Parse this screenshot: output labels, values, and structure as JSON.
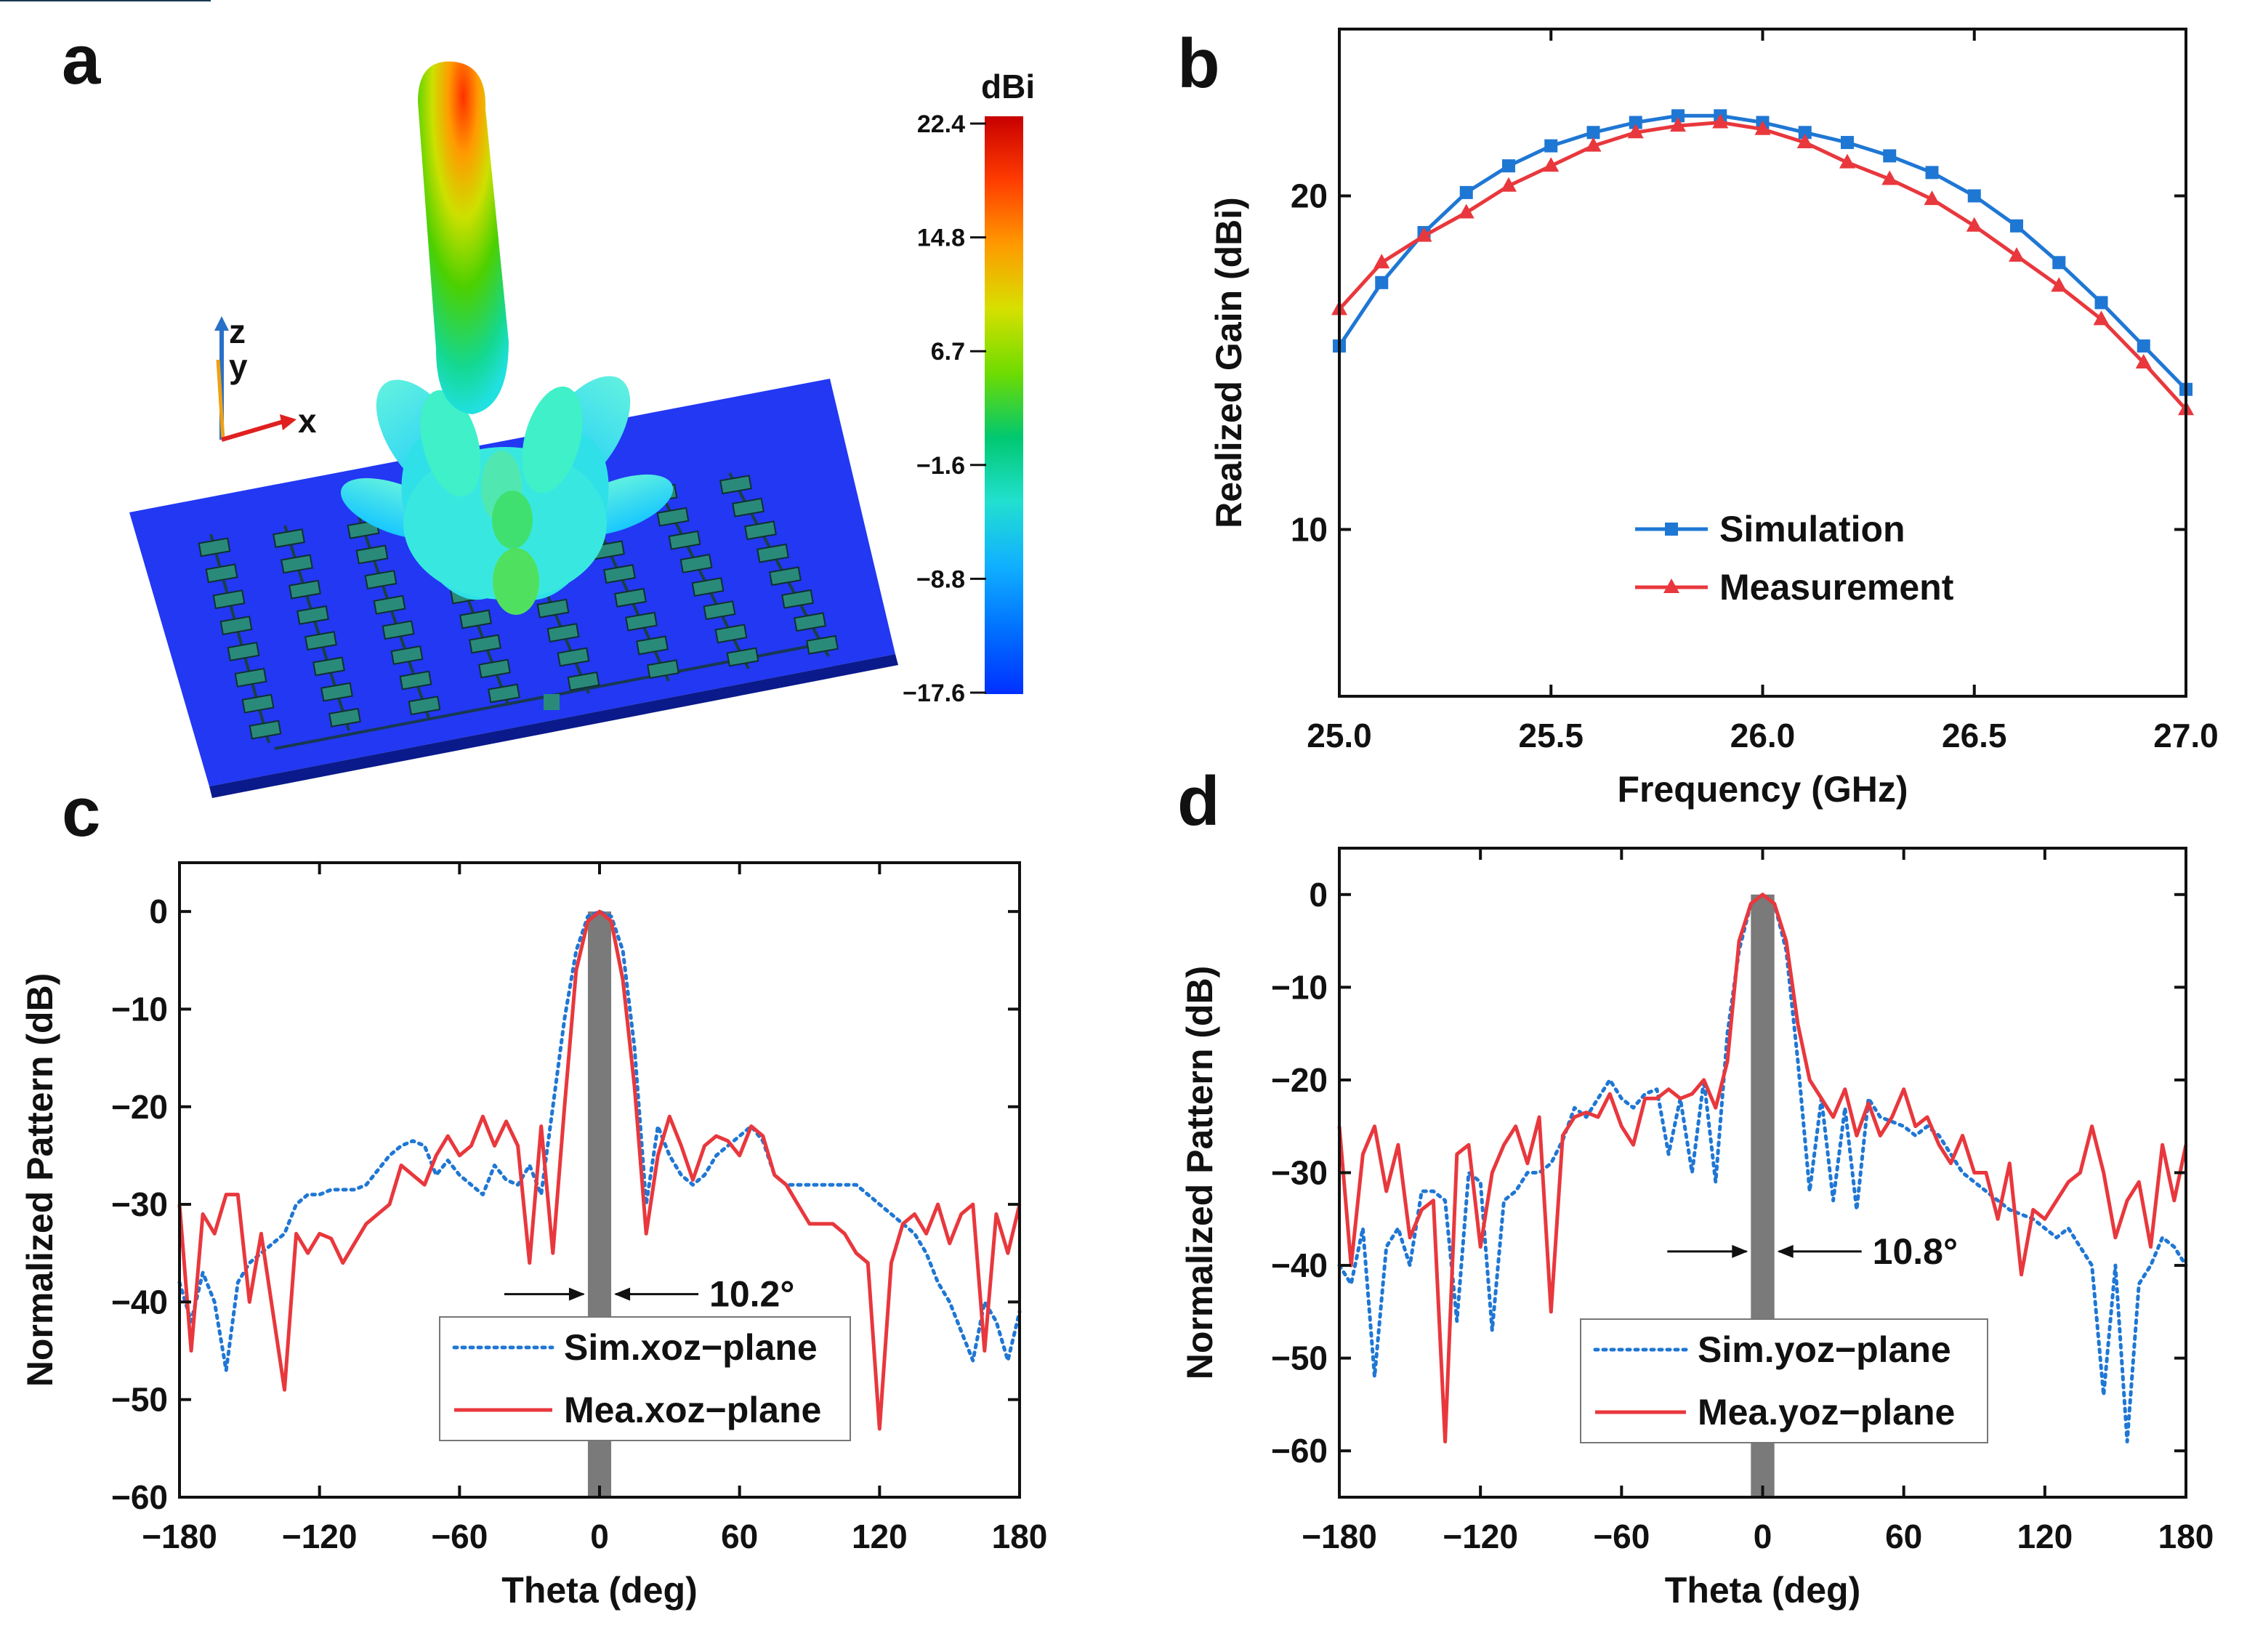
{
  "panels": {
    "a": {
      "label": "a",
      "colorbar": {
        "unit": "dBi",
        "ticks": [
          "22.4",
          "14.8",
          "6.7",
          "-1.6",
          "-8.8",
          "-17.6"
        ],
        "colors": [
          "#c80000",
          "#ff3c00",
          "#ff9a00",
          "#d7e000",
          "#6fdc00",
          "#00c870",
          "#22e0d0",
          "#10b0ff",
          "#0070ff",
          "#0030ff"
        ]
      },
      "axes": {
        "z": "z",
        "y": "y",
        "x": "x"
      }
    },
    "b": {
      "label": "b"
    },
    "c": {
      "label": "c",
      "beamwidth": "10.2°"
    },
    "d": {
      "label": "d",
      "beamwidth": "10.8°"
    }
  },
  "chart_data": [
    {
      "type": "line",
      "panel": "b",
      "title": "",
      "xlabel": "Frequency (GHz)",
      "ylabel": "Realized Gain (dBi)",
      "xlim": [
        25.0,
        27.0
      ],
      "ylim": [
        5,
        25
      ],
      "xticks": [
        "25.0",
        "25.5",
        "26.0",
        "26.5",
        "27.0"
      ],
      "yticks": [
        "10",
        "20"
      ],
      "x": [
        25.0,
        25.1,
        25.2,
        25.3,
        25.4,
        25.5,
        25.6,
        25.7,
        25.8,
        25.9,
        26.0,
        26.1,
        26.2,
        26.3,
        26.4,
        26.5,
        26.6,
        26.7,
        26.8,
        26.9,
        27.0
      ],
      "series": [
        {
          "name": "Simulation",
          "color": "#1f77d4",
          "marker": "square",
          "values": [
            15.5,
            17.4,
            18.9,
            20.1,
            20.9,
            21.5,
            21.9,
            22.2,
            22.4,
            22.4,
            22.2,
            21.9,
            21.6,
            21.2,
            20.7,
            20.0,
            19.1,
            18.0,
            16.8,
            15.5,
            14.2
          ]
        },
        {
          "name": "Measurement",
          "color": "#e8383d",
          "marker": "triangle",
          "values": [
            16.6,
            18.0,
            18.8,
            19.5,
            20.3,
            20.9,
            21.5,
            21.9,
            22.1,
            22.2,
            22.0,
            21.6,
            21.0,
            20.5,
            19.9,
            19.1,
            18.2,
            17.3,
            16.3,
            15.0,
            13.6
          ]
        }
      ]
    },
    {
      "type": "line",
      "panel": "c",
      "xlabel": "Theta (deg)",
      "ylabel": "Normalized Pattern (dB)",
      "xlim": [
        -180,
        180
      ],
      "ylim": [
        -60,
        5
      ],
      "xticks": [
        "-180",
        "-120",
        "-60",
        "0",
        "60",
        "120",
        "180"
      ],
      "yticks": [
        "0",
        "-10",
        "-20",
        "-30",
        "-40",
        "-50",
        "-60"
      ],
      "x": [
        -180,
        -175,
        -170,
        -165,
        -160,
        -155,
        -150,
        -145,
        -140,
        -135,
        -130,
        -125,
        -120,
        -115,
        -110,
        -105,
        -100,
        -95,
        -90,
        -85,
        -80,
        -75,
        -70,
        -65,
        -60,
        -55,
        -50,
        -45,
        -40,
        -35,
        -30,
        -25,
        -20,
        -15,
        -10,
        -5,
        0,
        5,
        10,
        15,
        20,
        25,
        30,
        35,
        40,
        45,
        50,
        55,
        60,
        65,
        70,
        75,
        80,
        85,
        90,
        95,
        100,
        105,
        110,
        115,
        120,
        125,
        130,
        135,
        140,
        145,
        150,
        155,
        160,
        165,
        170,
        175,
        180
      ],
      "series": [
        {
          "name": "Sim.xoz−plane",
          "color": "#1f77d4",
          "style": "dotted",
          "values": [
            -38,
            -42,
            -37,
            -40,
            -47,
            -38,
            -36,
            -35,
            -34,
            -33,
            -30,
            -29,
            -29,
            -28.5,
            -28.5,
            -28.5,
            -28,
            -26.5,
            -25,
            -24,
            -23.5,
            -24,
            -27,
            -25.5,
            -27,
            -28,
            -29,
            -26,
            -27.5,
            -28,
            -26,
            -29,
            -20,
            -11,
            -4,
            -0.5,
            0,
            -0.5,
            -4,
            -14,
            -30,
            -22,
            -25,
            -27,
            -28,
            -27,
            -25,
            -24,
            -23,
            -22,
            -23.5,
            -27,
            -28,
            -28,
            -28,
            -28,
            -28,
            -28,
            -28,
            -29,
            -30,
            -31,
            -32,
            -33,
            -35,
            -38,
            -40,
            -43,
            -46,
            -40,
            -42,
            -46,
            -41
          ]
        },
        {
          "name": "Mea.xoz−plane",
          "color": "#e8383d",
          "style": "solid",
          "values": [
            -30,
            -45,
            -31,
            -33,
            -29,
            -29,
            -40,
            -33,
            -41,
            -49,
            -33,
            -35,
            -33,
            -33.5,
            -36,
            -34,
            -32,
            -31,
            -30,
            -26,
            -27,
            -28,
            -25,
            -23,
            -25,
            -24,
            -21,
            -24,
            -21.5,
            -24,
            -36,
            -22,
            -35,
            -20,
            -6,
            -1,
            0,
            -1,
            -7,
            -18,
            -33,
            -25,
            -21,
            -24,
            -27.5,
            -24,
            -23,
            -23.5,
            -25,
            -22,
            -23,
            -27,
            -28,
            -30,
            -32,
            -32,
            -32,
            -33,
            -35,
            -36,
            -53,
            -36,
            -32,
            -31,
            -33,
            -30,
            -34,
            -31,
            -30,
            -45,
            -31,
            -35,
            -30
          ]
        }
      ]
    },
    {
      "type": "line",
      "panel": "d",
      "xlabel": "Theta (deg)",
      "ylabel": "Normalized Pattern (dB)",
      "xlim": [
        -180,
        180
      ],
      "ylim": [
        -65,
        5
      ],
      "xticks": [
        "-180",
        "-120",
        "-60",
        "0",
        "60",
        "120",
        "180"
      ],
      "yticks": [
        "0",
        "-10",
        "-20",
        "-30",
        "-40",
        "-50",
        "-60"
      ],
      "x": [
        -180,
        -175,
        -170,
        -165,
        -160,
        -155,
        -150,
        -145,
        -140,
        -135,
        -130,
        -125,
        -120,
        -115,
        -110,
        -105,
        -100,
        -95,
        -90,
        -85,
        -80,
        -75,
        -70,
        -65,
        -60,
        -55,
        -50,
        -45,
        -40,
        -35,
        -30,
        -25,
        -20,
        -15,
        -10,
        -5,
        0,
        5,
        10,
        15,
        20,
        25,
        30,
        35,
        40,
        45,
        50,
        55,
        60,
        65,
        70,
        75,
        80,
        85,
        90,
        95,
        100,
        105,
        110,
        115,
        120,
        125,
        130,
        135,
        140,
        145,
        150,
        155,
        160,
        165,
        170,
        175,
        180
      ],
      "series": [
        {
          "name": "Sim.yoz−plane",
          "color": "#1f77d4",
          "style": "dotted",
          "values": [
            -40,
            -42,
            -36,
            -52,
            -38,
            -36,
            -40,
            -32,
            -32,
            -33,
            -46,
            -30,
            -31,
            -47,
            -33,
            -32,
            -30,
            -30,
            -29,
            -26.5,
            -23,
            -24,
            -22,
            -20,
            -22,
            -23,
            -21.5,
            -21,
            -28,
            -22,
            -30,
            -20,
            -31,
            -15,
            -6,
            -1,
            0,
            -1,
            -6,
            -18,
            -32,
            -22,
            -33,
            -23,
            -34,
            -22,
            -24,
            -24.5,
            -25,
            -26,
            -25,
            -26,
            -28,
            -30,
            -31,
            -32,
            -33,
            -34,
            -34.5,
            -35,
            -36,
            -37,
            -36,
            -38,
            -40,
            -54,
            -40,
            -59,
            -42,
            -40,
            -37,
            -38,
            -40
          ]
        },
        {
          "name": "Mea.yoz−plane",
          "color": "#e8383d",
          "style": "solid",
          "values": [
            -25,
            -40,
            -28,
            -25,
            -32,
            -27,
            -37,
            -34,
            -33,
            -59,
            -28,
            -27,
            -38,
            -30,
            -27,
            -25,
            -29,
            -24,
            -45,
            -26,
            -24,
            -23.5,
            -24,
            -21.5,
            -25,
            -27,
            -22,
            -22,
            -21,
            -22,
            -21.5,
            -20,
            -23,
            -18,
            -5,
            -1,
            0,
            -1,
            -5,
            -14,
            -20,
            -22,
            -24,
            -21,
            -26,
            -22.5,
            -26,
            -24,
            -21,
            -25,
            -24,
            -27,
            -29,
            -26,
            -30,
            -30,
            -35,
            -29,
            -41,
            -34,
            -35,
            -33,
            -31,
            -30,
            -25,
            -30,
            -37,
            -33,
            -31,
            -38,
            -27,
            -33,
            -27
          ]
        }
      ]
    }
  ]
}
